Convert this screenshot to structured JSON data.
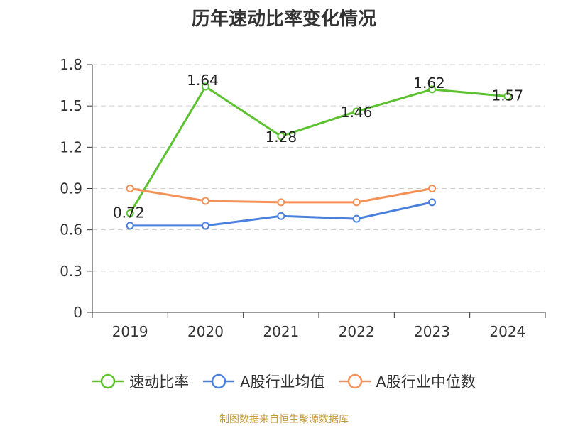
{
  "title": "历年速动比率变化情况",
  "source_note": "制图数据来自恒生聚源数据库",
  "colors": {
    "series_1": "#5cc22f",
    "series_2": "#4a80dd",
    "series_3": "#f59156",
    "grid": "#cccccc",
    "axis": "#333333"
  },
  "chart_data": {
    "type": "line",
    "title": "历年速动比率变化情况",
    "xlabel": "",
    "ylabel": "",
    "categories": [
      "2019",
      "2020",
      "2021",
      "2022",
      "2023",
      "2024"
    ],
    "y_ticks": [
      "0",
      "0.3",
      "0.6",
      "0.9",
      "1.2",
      "1.5",
      "1.8"
    ],
    "ylim": [
      0,
      1.8
    ],
    "grid": true,
    "legend_position": "bottom",
    "series": [
      {
        "name": "速动比率",
        "values": [
          0.72,
          1.64,
          1.28,
          1.46,
          1.62,
          1.57
        ],
        "labels": [
          "0.72",
          "1.64",
          "1.28",
          "1.46",
          "1.62",
          "1.57"
        ],
        "show_labels": true
      },
      {
        "name": "A股行业均值",
        "values": [
          0.63,
          0.63,
          0.7,
          0.68,
          0.8,
          null
        ],
        "show_labels": false
      },
      {
        "name": "A股行业中位数",
        "values": [
          0.9,
          0.81,
          0.8,
          0.8,
          0.9,
          null
        ],
        "show_labels": false
      }
    ]
  }
}
